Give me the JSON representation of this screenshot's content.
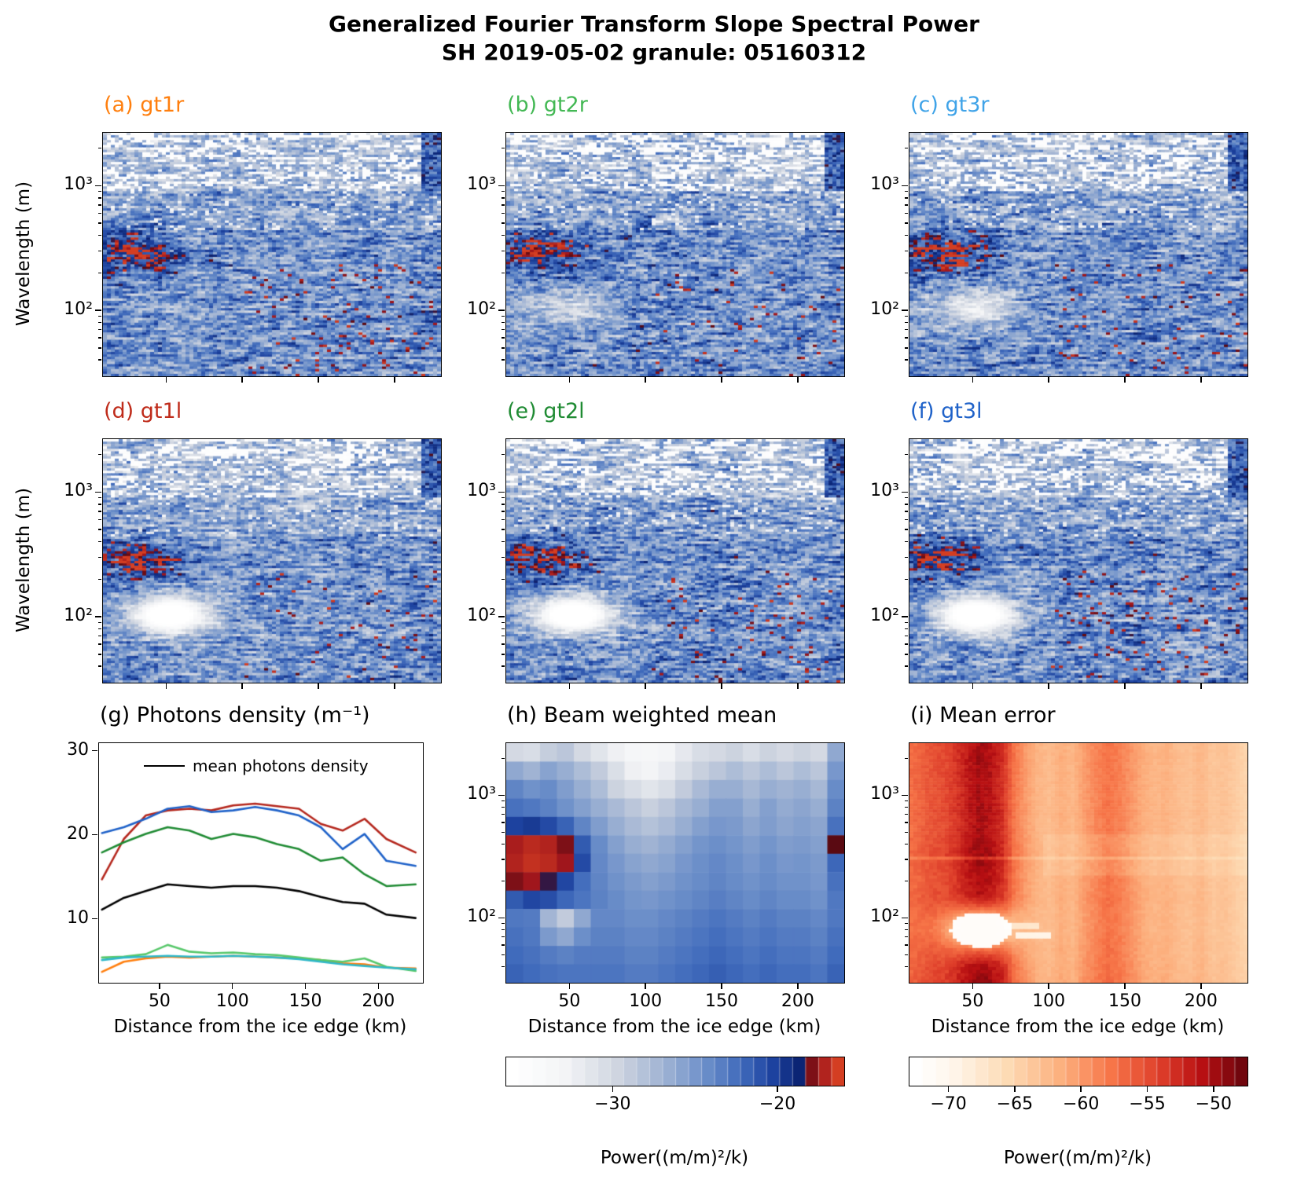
{
  "title": {
    "line1": "Generalized Fourier Transform Slope Spectral Power",
    "line2": "SH 2019-05-02 granule: 05160312"
  },
  "axes": {
    "ylabel": "Wavelength (m)",
    "xlabel": "Distance from the ice edge (km)",
    "y_major_labels": [
      "10³",
      "10²"
    ],
    "x_tick_values": [
      50,
      100,
      150,
      200
    ],
    "x_tick_labels": [
      "50",
      "100",
      "150",
      "200"
    ]
  },
  "panels": {
    "a": {
      "label": "(a) gt1r",
      "color": "#ff7f0e"
    },
    "b": {
      "label": "(b) gt2r",
      "color": "#43b854"
    },
    "c": {
      "label": "(c) gt3r",
      "color": "#3fa3e8"
    },
    "d": {
      "label": "(d) gt1l",
      "color": "#bf2b1a"
    },
    "e": {
      "label": "(e) gt2l",
      "color": "#1f8b33"
    },
    "f": {
      "label": "(f) gt3l",
      "color": "#1f62c9"
    },
    "g": {
      "label": "(g) Photons density (m⁻¹)",
      "color": "#000000"
    },
    "h": {
      "label": "(h) Beam weighted mean",
      "color": "#000000"
    },
    "i": {
      "label": "(i) Mean error",
      "color": "#000000"
    }
  },
  "legend": {
    "label": "mean photons density",
    "line_color": "#000000"
  },
  "colorbars": {
    "power": {
      "label": "Power((m/m)²/k)"
    },
    "error": {
      "label": "Power((m/m)²/k)"
    }
  },
  "colormaps": {
    "diverging": [
      [
        0,
        255,
        255,
        255
      ],
      [
        0.16,
        243,
        244,
        246
      ],
      [
        0.32,
        207,
        213,
        224
      ],
      [
        0.46,
        160,
        179,
        211
      ],
      [
        0.58,
        112,
        146,
        202
      ],
      [
        0.7,
        64,
        107,
        188
      ],
      [
        0.8,
        29,
        66,
        159
      ],
      [
        0.88,
        11,
        36,
        116
      ],
      [
        0.9,
        90,
        10,
        18
      ],
      [
        0.94,
        160,
        22,
        28
      ],
      [
        1,
        212,
        62,
        34
      ]
    ],
    "reds": [
      [
        0,
        255,
        255,
        255
      ],
      [
        0.1,
        255,
        247,
        238
      ],
      [
        0.28,
        253,
        219,
        180
      ],
      [
        0.45,
        252,
        174,
        124
      ],
      [
        0.6,
        247,
        117,
        72
      ],
      [
        0.75,
        222,
        62,
        42
      ],
      [
        0.88,
        183,
        15,
        18
      ],
      [
        1,
        113,
        6,
        13
      ]
    ]
  },
  "chart_data": [
    {
      "id": "spectrogram-gt1r",
      "panel": "a",
      "type": "heatmap",
      "variant": "spectrogram",
      "beam": "gt1r",
      "colormap": "diverging",
      "seed": 11,
      "x_range_km": [
        8,
        230
      ],
      "wavelength_range_m": [
        30,
        2700
      ],
      "features": {
        "hotspot": 0.58,
        "red_hotspot_x_km": [
          10,
          65
        ],
        "red_hotspot_wavelength_m": [
          180,
          460
        ],
        "white_blob": 0.05,
        "white_blob_x_km": [
          30,
          80
        ],
        "white_blob_wavelength_m": [
          60,
          170
        ],
        "red_speckle": 1.2
      }
    },
    {
      "id": "spectrogram-gt2r",
      "panel": "b",
      "type": "heatmap",
      "variant": "spectrogram",
      "beam": "gt2r",
      "colormap": "diverging",
      "seed": 23,
      "x_range_km": [
        8,
        230
      ],
      "wavelength_range_m": [
        30,
        2700
      ],
      "features": {
        "hotspot": 0.52,
        "red_hotspot_x_km": [
          10,
          65
        ],
        "red_hotspot_wavelength_m": [
          180,
          460
        ],
        "white_blob": 0.35,
        "white_blob_x_km": [
          30,
          80
        ],
        "white_blob_wavelength_m": [
          60,
          170
        ],
        "red_speckle": 0.7
      }
    },
    {
      "id": "spectrogram-gt3r",
      "panel": "c",
      "type": "heatmap",
      "variant": "spectrogram",
      "beam": "gt3r",
      "colormap": "diverging",
      "seed": 37,
      "x_range_km": [
        8,
        230
      ],
      "wavelength_range_m": [
        30,
        2700
      ],
      "features": {
        "hotspot": 0.56,
        "red_hotspot_x_km": [
          10,
          65
        ],
        "red_hotspot_wavelength_m": [
          180,
          460
        ],
        "white_blob": 0.5,
        "white_blob_x_km": [
          30,
          80
        ],
        "white_blob_wavelength_m": [
          60,
          170
        ],
        "red_speckle": 0.6
      }
    },
    {
      "id": "spectrogram-gt1l",
      "panel": "d",
      "type": "heatmap",
      "variant": "spectrogram",
      "beam": "gt1l",
      "colormap": "diverging",
      "seed": 41,
      "x_range_km": [
        8,
        230
      ],
      "wavelength_range_m": [
        30,
        2700
      ],
      "features": {
        "hotspot": 0.5,
        "red_hotspot_x_km": [
          10,
          65
        ],
        "red_hotspot_wavelength_m": [
          180,
          460
        ],
        "white_blob": 1.0,
        "white_blob_x_km": [
          28,
          80
        ],
        "white_blob_wavelength_m": [
          60,
          180
        ],
        "red_speckle": 0.5
      }
    },
    {
      "id": "spectrogram-gt2l",
      "panel": "e",
      "type": "heatmap",
      "variant": "spectrogram",
      "beam": "gt2l",
      "colormap": "diverging",
      "seed": 53,
      "x_range_km": [
        8,
        230
      ],
      "wavelength_range_m": [
        30,
        2700
      ],
      "features": {
        "hotspot": 0.52,
        "red_hotspot_x_km": [
          10,
          65
        ],
        "red_hotspot_wavelength_m": [
          180,
          460
        ],
        "white_blob": 1.0,
        "white_blob_x_km": [
          28,
          80
        ],
        "white_blob_wavelength_m": [
          60,
          180
        ],
        "red_speckle": 0.7
      }
    },
    {
      "id": "spectrogram-gt3l",
      "panel": "f",
      "type": "heatmap",
      "variant": "spectrogram",
      "beam": "gt3l",
      "colormap": "diverging",
      "seed": 67,
      "x_range_km": [
        8,
        230
      ],
      "wavelength_range_m": [
        30,
        2700
      ],
      "features": {
        "hotspot": 0.5,
        "red_hotspot_x_km": [
          10,
          65
        ],
        "red_hotspot_wavelength_m": [
          180,
          460
        ],
        "white_blob": 1.0,
        "white_blob_x_km": [
          28,
          80
        ],
        "white_blob_wavelength_m": [
          60,
          180
        ],
        "red_speckle": 0.9
      }
    },
    {
      "id": "photons-density",
      "panel": "g",
      "type": "line",
      "xlabel": "Distance from the ice edge (km)",
      "ylabel": "",
      "xlim": [
        8,
        230
      ],
      "ylim": [
        2.5,
        31
      ],
      "xticks": [
        50,
        100,
        150,
        200
      ],
      "yticks": [
        10,
        20,
        30
      ],
      "x": [
        10,
        25,
        40,
        55,
        70,
        85,
        100,
        115,
        130,
        145,
        160,
        175,
        190,
        205,
        225
      ],
      "series": [
        {
          "name": "gt1l",
          "color": "#b5271d",
          "values": [
            14.8,
            19.6,
            22.4,
            23.0,
            23.2,
            23.0,
            23.6,
            23.8,
            23.5,
            23.2,
            21.4,
            20.6,
            22.0,
            19.6,
            18.0
          ]
        },
        {
          "name": "gt3l",
          "color": "#1f62c9",
          "values": [
            20.3,
            21.0,
            22.0,
            23.2,
            23.5,
            22.8,
            23.0,
            23.4,
            23.0,
            22.4,
            21.0,
            18.4,
            20.2,
            17.0,
            16.4
          ]
        },
        {
          "name": "gt2l",
          "color": "#1f8b33",
          "values": [
            18.0,
            19.2,
            20.2,
            21.0,
            20.6,
            19.6,
            20.2,
            19.8,
            19.0,
            18.4,
            17.0,
            17.4,
            15.4,
            14.0,
            14.2
          ]
        },
        {
          "name": "gt1r",
          "color": "#ff7f0e",
          "values": [
            3.8,
            5.0,
            5.4,
            5.6,
            5.5,
            5.6,
            5.7,
            5.6,
            5.5,
            5.4,
            5.2,
            4.8,
            4.7,
            4.3,
            4.2
          ]
        },
        {
          "name": "gt2r",
          "color": "#58c86b",
          "values": [
            5.5,
            5.6,
            5.9,
            7.0,
            6.2,
            6.0,
            6.1,
            5.9,
            5.8,
            5.5,
            5.2,
            5.0,
            5.4,
            4.4,
            3.9
          ]
        },
        {
          "name": "gt3r",
          "color": "#2fb8c9",
          "values": [
            5.2,
            5.5,
            5.6,
            5.7,
            5.6,
            5.6,
            5.7,
            5.6,
            5.5,
            5.3,
            5.0,
            4.7,
            4.5,
            4.3,
            4.1
          ]
        },
        {
          "name": "mean photons density",
          "color": "#000000",
          "values": [
            11.2,
            12.6,
            13.4,
            14.2,
            14.0,
            13.8,
            14.0,
            14.0,
            13.8,
            13.4,
            12.7,
            12.1,
            11.9,
            10.6,
            10.2
          ]
        }
      ],
      "legend": {
        "entries": [
          "mean photons density"
        ],
        "position": "upper left"
      }
    },
    {
      "id": "beam-weighted-mean",
      "panel": "h",
      "type": "heatmap",
      "variant": "matrix",
      "colormap": "diverging",
      "x_range_km": [
        8,
        230
      ],
      "wavelength_range_m": [
        40,
        2500
      ],
      "values": [
        [
          0.3,
          0.28,
          0.35,
          0.38,
          0.3,
          0.24,
          0.18,
          0.13,
          0.12,
          0.15,
          0.22,
          0.28,
          0.3,
          0.33,
          0.28,
          0.33,
          0.3,
          0.33,
          0.3,
          0.5
        ],
        [
          0.5,
          0.46,
          0.52,
          0.48,
          0.42,
          0.36,
          0.27,
          0.18,
          0.16,
          0.2,
          0.28,
          0.34,
          0.38,
          0.42,
          0.38,
          0.42,
          0.38,
          0.42,
          0.38,
          0.56
        ],
        [
          0.62,
          0.58,
          0.6,
          0.54,
          0.48,
          0.42,
          0.33,
          0.28,
          0.24,
          0.28,
          0.36,
          0.43,
          0.48,
          0.48,
          0.44,
          0.48,
          0.46,
          0.48,
          0.44,
          0.6
        ],
        [
          0.68,
          0.66,
          0.63,
          0.58,
          0.53,
          0.48,
          0.43,
          0.38,
          0.34,
          0.38,
          0.44,
          0.48,
          0.53,
          0.53,
          0.48,
          0.53,
          0.49,
          0.51,
          0.48,
          0.63
        ],
        [
          0.8,
          0.82,
          0.78,
          0.72,
          0.62,
          0.54,
          0.48,
          0.43,
          0.4,
          0.43,
          0.48,
          0.53,
          0.56,
          0.55,
          0.51,
          0.54,
          0.51,
          0.53,
          0.51,
          0.68
        ],
        [
          0.95,
          0.97,
          0.96,
          0.92,
          0.74,
          0.6,
          0.53,
          0.48,
          0.46,
          0.49,
          0.53,
          0.57,
          0.59,
          0.57,
          0.54,
          0.57,
          0.54,
          0.55,
          0.53,
          0.9
        ],
        [
          0.96,
          0.98,
          0.97,
          0.94,
          0.78,
          0.61,
          0.56,
          0.52,
          0.5,
          0.52,
          0.56,
          0.59,
          0.61,
          0.59,
          0.56,
          0.59,
          0.56,
          0.57,
          0.55,
          0.71
        ],
        [
          0.92,
          0.94,
          0.89,
          0.79,
          0.69,
          0.62,
          0.58,
          0.55,
          0.53,
          0.55,
          0.58,
          0.6,
          0.62,
          0.6,
          0.58,
          0.6,
          0.58,
          0.58,
          0.56,
          0.68
        ],
        [
          0.74,
          0.79,
          0.77,
          0.71,
          0.67,
          0.63,
          0.6,
          0.57,
          0.56,
          0.58,
          0.6,
          0.62,
          0.64,
          0.62,
          0.6,
          0.62,
          0.6,
          0.6,
          0.58,
          0.66
        ],
        [
          0.66,
          0.65,
          0.45,
          0.36,
          0.5,
          0.61,
          0.61,
          0.59,
          0.59,
          0.61,
          0.63,
          0.65,
          0.67,
          0.65,
          0.63,
          0.65,
          0.63,
          0.63,
          0.61,
          0.66
        ],
        [
          0.68,
          0.66,
          0.55,
          0.5,
          0.59,
          0.63,
          0.63,
          0.61,
          0.61,
          0.63,
          0.65,
          0.67,
          0.69,
          0.67,
          0.65,
          0.67,
          0.65,
          0.65,
          0.63,
          0.68
        ],
        [
          0.7,
          0.68,
          0.65,
          0.63,
          0.65,
          0.65,
          0.65,
          0.63,
          0.63,
          0.65,
          0.67,
          0.69,
          0.71,
          0.69,
          0.67,
          0.69,
          0.67,
          0.67,
          0.65,
          0.7
        ],
        [
          0.72,
          0.7,
          0.68,
          0.67,
          0.67,
          0.67,
          0.67,
          0.65,
          0.65,
          0.67,
          0.69,
          0.71,
          0.73,
          0.71,
          0.69,
          0.71,
          0.69,
          0.69,
          0.67,
          0.72
        ]
      ]
    },
    {
      "id": "mean-error",
      "panel": "i",
      "type": "heatmap",
      "variant": "error",
      "colormap": "reds",
      "seed": 7,
      "x_range_km": [
        8,
        230
      ],
      "wavelength_range_m": [
        40,
        2500
      ],
      "column_profile": [
        0.62,
        0.66,
        0.7,
        0.72,
        0.78,
        0.86,
        0.92,
        0.88,
        0.8,
        0.6,
        0.5,
        0.43,
        0.4,
        0.45,
        0.42,
        0.5,
        0.56,
        0.61,
        0.58,
        0.52,
        0.46,
        0.42,
        0.44,
        0.4,
        0.38,
        0.42,
        0.36,
        0.38,
        0.34,
        0.3
      ],
      "white_blob": {
        "x_km": [
          35,
          82
        ],
        "wavelength_m": [
          55,
          140
        ]
      }
    },
    {
      "id": "colorbar-power",
      "type": "colorbar",
      "colormap": "diverging",
      "vmin": -36.5,
      "vmax": -16,
      "ticks": [
        -30,
        -20
      ],
      "segments": 26,
      "label": "Power((m/m)²/k)"
    },
    {
      "id": "colorbar-error",
      "type": "colorbar",
      "colormap": "reds",
      "vmin": -73,
      "vmax": -47.5,
      "ticks": [
        -70,
        -65,
        -60,
        -55,
        -50
      ],
      "segments": 26,
      "label": "Power((m/m)²/k)"
    }
  ]
}
